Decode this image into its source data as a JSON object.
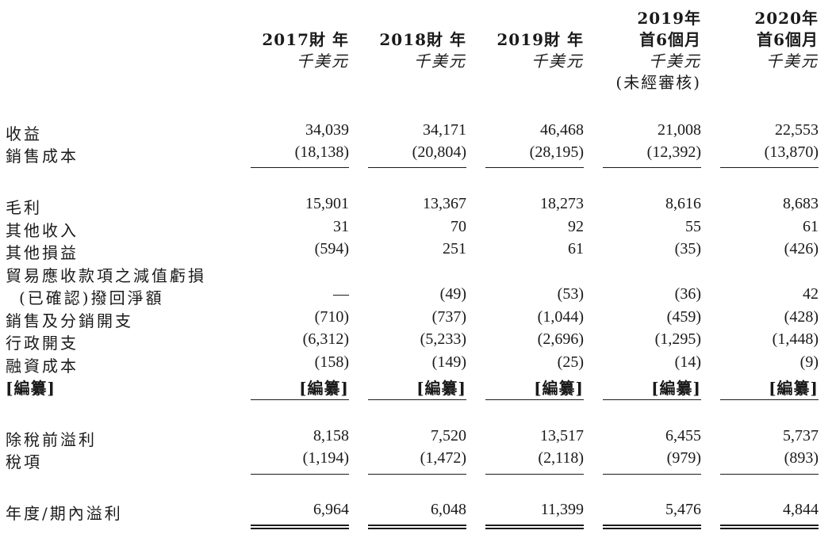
{
  "columns": [
    {
      "l1": "",
      "l2": "2017財 年",
      "unit": "千美元",
      "note": ""
    },
    {
      "l1": "",
      "l2": "2018財 年",
      "unit": "千美元",
      "note": ""
    },
    {
      "l1": "",
      "l2": "2019財 年",
      "unit": "千美元",
      "note": ""
    },
    {
      "l1": "2019年",
      "l2": "首6個月",
      "unit": "千美元",
      "note": "(未經審核)"
    },
    {
      "l1": "2020年",
      "l2": "首6個月",
      "unit": "千美元",
      "note": ""
    }
  ],
  "rows": [
    {
      "label": "收益",
      "values": [
        "34,039",
        "34,171",
        "46,468",
        "21,008",
        "22,553"
      ]
    },
    {
      "label": "銷售成本",
      "values": [
        "(18,138)",
        "(20,804)",
        "(28,195)",
        "(12,392)",
        "(13,870)"
      ]
    },
    {
      "label": "毛利",
      "values": [
        "15,901",
        "13,367",
        "18,273",
        "8,616",
        "8,683"
      ]
    },
    {
      "label": "其他收入",
      "values": [
        "31",
        "70",
        "92",
        "55",
        "61"
      ]
    },
    {
      "label": "其他損益",
      "values": [
        "(594)",
        "251",
        "61",
        "(35)",
        "(426)"
      ]
    },
    {
      "label": "貿易應收款項之減值虧損",
      "values": [
        "",
        "",
        "",
        "",
        ""
      ]
    },
    {
      "label": "(已確認)撥回淨額",
      "values": [
        "—",
        "(49)",
        "(53)",
        "(36)",
        "42"
      ]
    },
    {
      "label": "銷售及分銷開支",
      "values": [
        "(710)",
        "(737)",
        "(1,044)",
        "(459)",
        "(428)"
      ]
    },
    {
      "label": "行政開支",
      "values": [
        "(6,312)",
        "(5,233)",
        "(2,696)",
        "(1,295)",
        "(1,448)"
      ]
    },
    {
      "label": "融資成本",
      "values": [
        "(158)",
        "(149)",
        "(25)",
        "(14)",
        "(9)"
      ]
    },
    {
      "label": "[編纂]",
      "values": [
        "[編纂]",
        "[編纂]",
        "[編纂]",
        "[編纂]",
        "[編纂]"
      ]
    },
    {
      "label": "除稅前溢利",
      "values": [
        "8,158",
        "7,520",
        "13,517",
        "6,455",
        "5,737"
      ]
    },
    {
      "label": "稅項",
      "values": [
        "(1,194)",
        "(1,472)",
        "(2,118)",
        "(979)",
        "(893)"
      ]
    },
    {
      "label": "年度/期內溢利",
      "values": [
        "6,964",
        "6,048",
        "11,399",
        "5,476",
        "4,844"
      ]
    }
  ]
}
